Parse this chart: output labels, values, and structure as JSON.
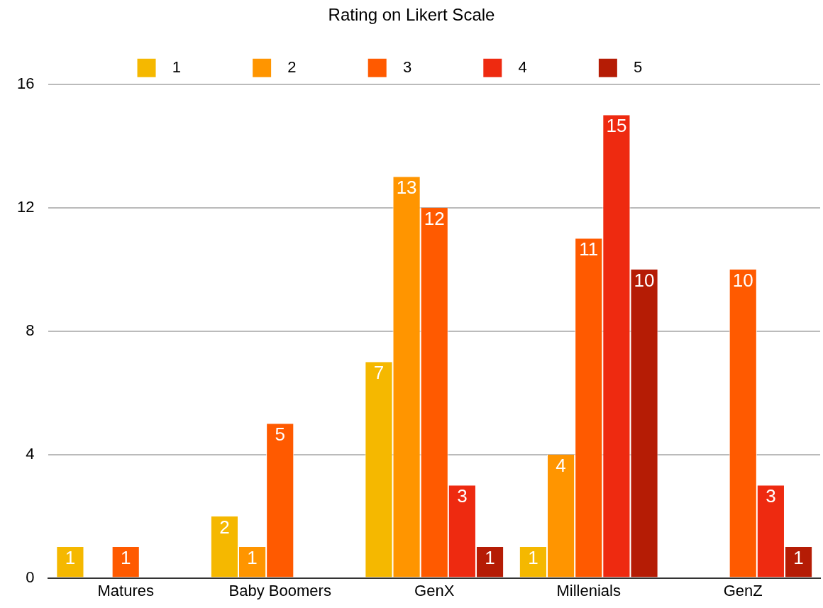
{
  "chart_data": {
    "type": "bar",
    "legend_title": "Rating on Likert Scale",
    "categories": [
      "Matures",
      "Baby Boomers",
      "GenX",
      "Millenials",
      "GenZ"
    ],
    "series": [
      {
        "name": "1",
        "color": "#f5b800",
        "values": [
          1,
          2,
          7,
          1,
          null
        ]
      },
      {
        "name": "2",
        "color": "#ff9500",
        "values": [
          null,
          1,
          13,
          4,
          null
        ]
      },
      {
        "name": "3",
        "color": "#ff5a00",
        "values": [
          1,
          5,
          12,
          11,
          10
        ]
      },
      {
        "name": "4",
        "color": "#ee2a10",
        "values": [
          null,
          null,
          3,
          15,
          3
        ]
      },
      {
        "name": "5",
        "color": "#b51c05",
        "values": [
          null,
          null,
          1,
          10,
          1
        ]
      }
    ],
    "ylim": [
      0,
      16
    ],
    "yticks": [
      0,
      4,
      8,
      12,
      16
    ],
    "grid": "y",
    "legend": "top",
    "data_labels": true
  }
}
